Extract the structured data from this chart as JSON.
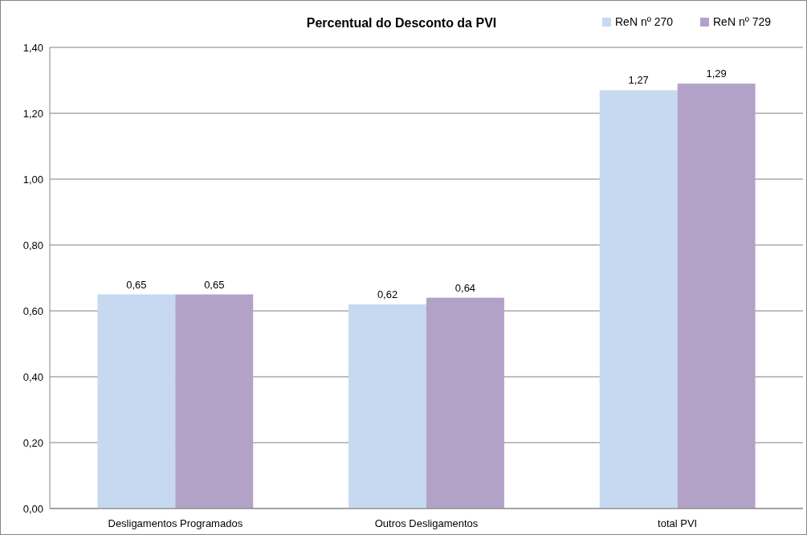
{
  "chart_data": {
    "type": "bar",
    "title": "Percentual do Desconto da PVI",
    "categories": [
      "Desligamentos Programados",
      "Outros Desligamentos",
      "total PVI"
    ],
    "series": [
      {
        "name": "ReN nº 270",
        "color": "#c6d9f1",
        "values": [
          0.65,
          0.62,
          1.27
        ],
        "value_labels": [
          "0,65",
          "0,62",
          "1,27"
        ]
      },
      {
        "name": "ReN nº 729",
        "color": "#b3a2c7",
        "values": [
          0.65,
          0.64,
          1.29
        ],
        "value_labels": [
          "0,65",
          "0,64",
          "1,29"
        ]
      }
    ],
    "ylim": [
      0,
      1.4
    ],
    "yticks": [
      {
        "value": 0,
        "label": "0,00"
      },
      {
        "value": 0.2,
        "label": "0,20"
      },
      {
        "value": 0.4,
        "label": "0,40"
      },
      {
        "value": 0.6,
        "label": "0,60"
      },
      {
        "value": 0.8,
        "label": "0,80"
      },
      {
        "value": 1,
        "label": "1,00"
      },
      {
        "value": 1.2,
        "label": "1,20"
      },
      {
        "value": 1.4,
        "label": "1,40"
      }
    ],
    "grid": "y",
    "legend": "top right"
  }
}
